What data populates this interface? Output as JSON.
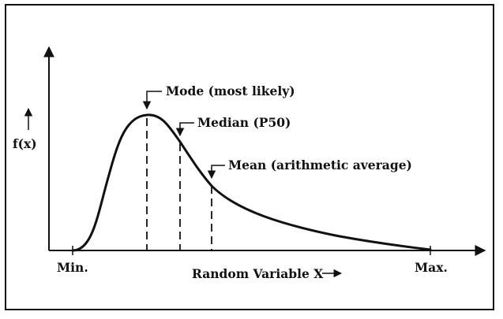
{
  "labels": {
    "mode": "Mode (most likely)",
    "median": "Median (P50)",
    "mean": "Mean (arithmetic average)",
    "y_axis": "f(x)",
    "x_axis": "Random Variable X",
    "min": "Min.",
    "max": "Max."
  },
  "colors": {
    "ink": "#111111",
    "background": "#ffffff"
  }
}
